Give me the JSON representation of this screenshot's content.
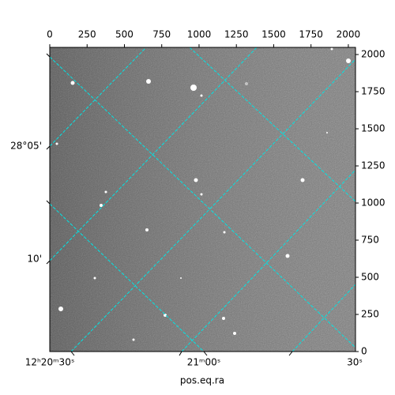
{
  "chart_data": {
    "type": "image",
    "xlabel": "pos.eq.ra",
    "xlim": [
      0,
      2048
    ],
    "xticks": [
      0,
      250,
      500,
      750,
      1000,
      1250,
      1500,
      1750,
      2000
    ],
    "ylim": [
      0,
      2048
    ],
    "yticks": [
      0,
      250,
      500,
      750,
      1000,
      1250,
      1500,
      1750,
      2000
    ],
    "ra_tick_labels": [
      "12ʰ20ᵐ30ˢ",
      "21ᵐ00ˢ",
      "30ˢ"
    ],
    "dec_tick_labels": [
      "28°05'",
      "10'"
    ],
    "grid": true,
    "grid_color": "#00e5e5"
  }
}
